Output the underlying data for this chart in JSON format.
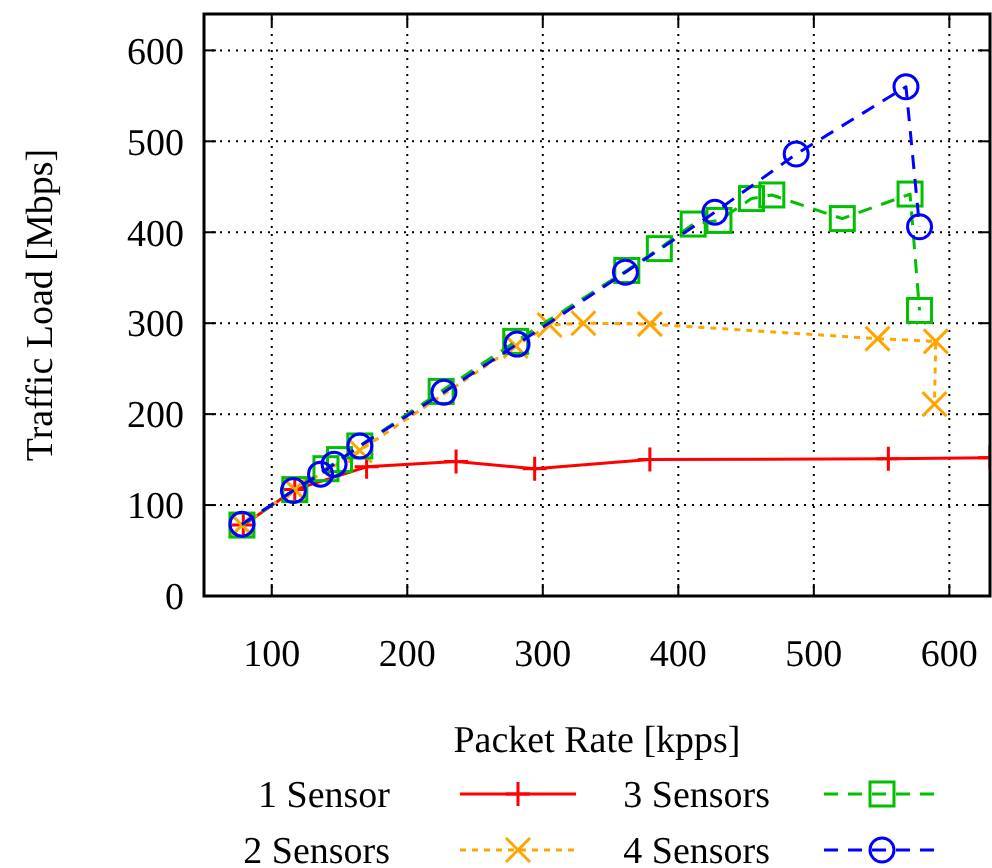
{
  "chart_data": {
    "type": "line",
    "xlabel": "Packet Rate [kpps]",
    "ylabel": "Traffic Load [Mbps]",
    "xlim": [
      50,
      630
    ],
    "ylim": [
      0,
      640
    ],
    "xticks": [
      100,
      200,
      300,
      400,
      500,
      600
    ],
    "yticks": [
      0,
      100,
      200,
      300,
      400,
      500,
      600
    ],
    "grid": true,
    "legend": "bottom",
    "series": [
      {
        "name": "1 Sensor",
        "color": "#ff0000",
        "marker": "cross",
        "line_style": "solid",
        "x": [
          79,
          117,
          170,
          236,
          294,
          379,
          555,
          630
        ],
        "values": [
          78,
          117,
          142,
          148,
          140,
          150,
          151,
          152
        ]
      },
      {
        "name": "2 Sensors",
        "color": "#ffa500",
        "marker": "x",
        "line_style": "dotted",
        "x": [
          78,
          117,
          165,
          280,
          305,
          330,
          379,
          547,
          590,
          589
        ],
        "values": [
          78,
          117,
          160,
          275,
          298,
          300,
          299,
          283,
          280,
          211
        ]
      },
      {
        "name": "3 Sensors",
        "color": "#00c000",
        "marker": "square",
        "line_style": "dashed",
        "x": [
          78,
          117,
          140,
          150,
          165,
          225,
          280,
          362,
          386,
          411,
          430,
          454,
          469,
          521,
          571,
          578
        ],
        "values": [
          78,
          117,
          140,
          150,
          165,
          225,
          280,
          358,
          382,
          409,
          413,
          437,
          441,
          415,
          442,
          314
        ]
      },
      {
        "name": "4 Sensors",
        "color": "#0000ff",
        "marker": "circle",
        "line_style": "dashed",
        "x": [
          78,
          116,
          136,
          146,
          165,
          227,
          281,
          361,
          427,
          487,
          568,
          578
        ],
        "values": [
          79,
          116,
          134,
          145,
          165,
          224,
          277,
          356,
          422,
          486,
          560,
          406
        ]
      }
    ]
  }
}
